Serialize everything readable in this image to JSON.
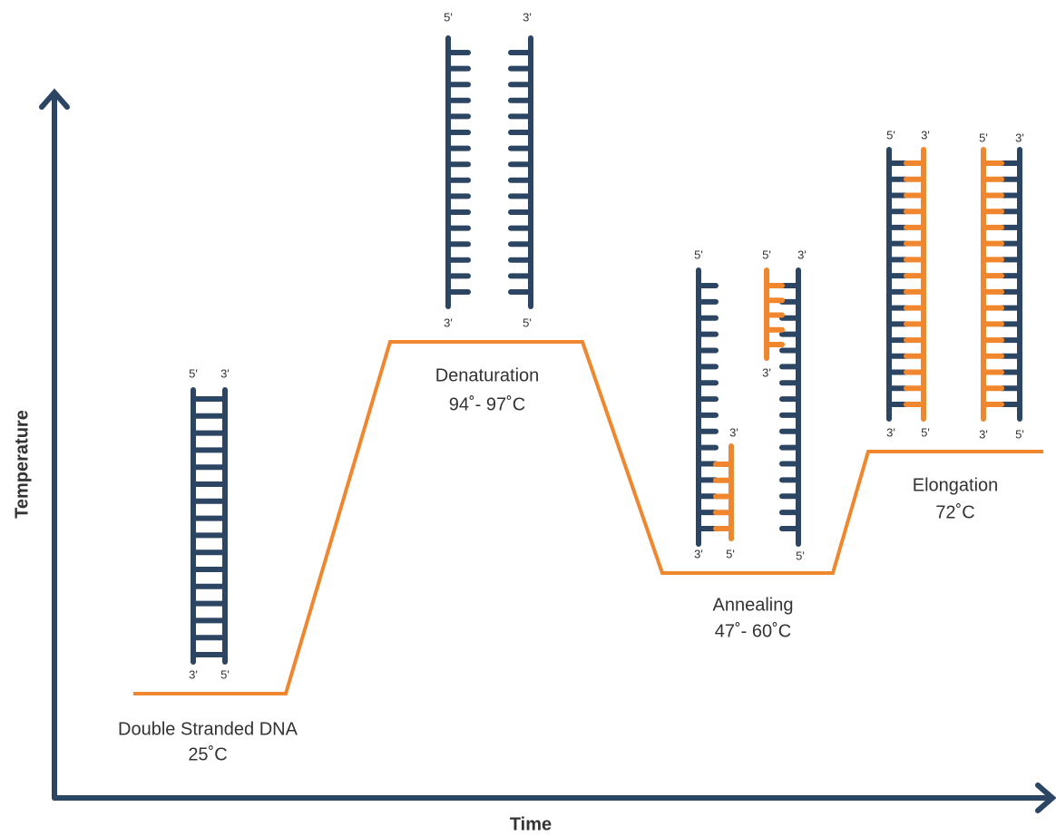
{
  "axes": {
    "y_label": "Temperature",
    "x_label": "Time"
  },
  "stages": [
    {
      "name": "Double Stranded DNA",
      "temperature": "25˚C",
      "ends": [
        "5'",
        "3'",
        "3'",
        "5'"
      ]
    },
    {
      "name": "Denaturation",
      "temperature": "94˚- 97˚C",
      "ends": [
        "5'",
        "3'",
        "3'",
        "5'"
      ]
    },
    {
      "name": "Annealing",
      "temperature": "47˚- 60˚C",
      "ends": [
        "5'",
        "3'",
        "3'",
        "5'",
        "5'",
        "3'",
        "3'",
        "5'"
      ]
    },
    {
      "name": "Elongation",
      "temperature": "72˚C",
      "ends": [
        "5'",
        "3'",
        "3'",
        "5'",
        "5'",
        "3'",
        "3'",
        "5'"
      ]
    }
  ]
}
